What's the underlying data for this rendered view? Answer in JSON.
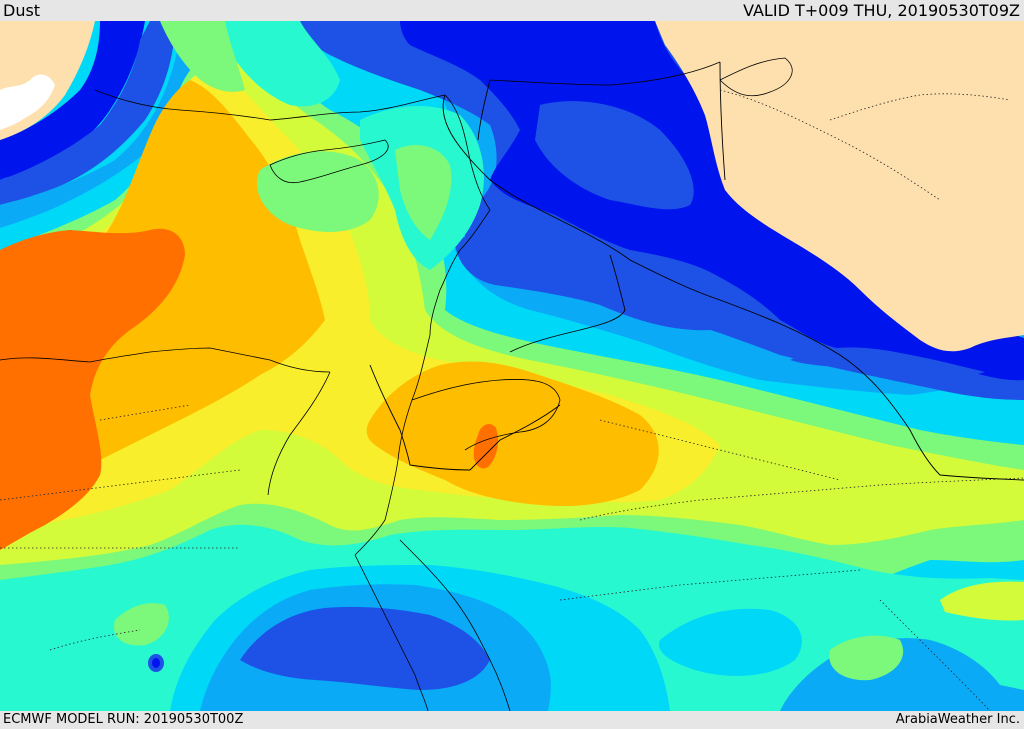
{
  "header": {
    "title": "Dust",
    "valid_time": "VALID T+009 THU, 20190530T09Z"
  },
  "footer": {
    "model_run": "ECMWF MODEL RUN: 20190530T00Z",
    "credit": "ArabiaWeather Inc."
  },
  "map": {
    "colors": {
      "land": "#fde0ae",
      "sea": "#ffffff",
      "darkest_blue": "#0014ee",
      "dark_blue": "#1e52e6",
      "blue": "#0aaaf7",
      "light_blue": "#00d8f8",
      "cyan": "#28f8d0",
      "green": "#7cf87a",
      "yellow_green": "#d4fb3a",
      "yellow": "#f8ee2c",
      "orange": "#ffbd00",
      "dark_orange": "#ff7000"
    }
  }
}
